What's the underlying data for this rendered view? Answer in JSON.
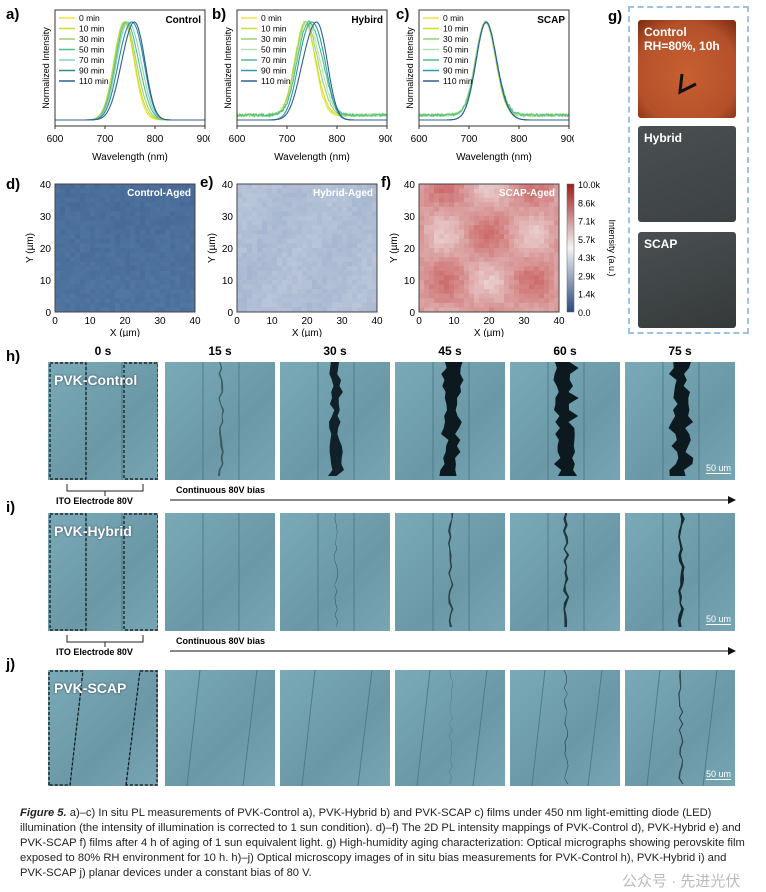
{
  "panels": {
    "a": "a)",
    "b": "b)",
    "c": "c)",
    "d": "d)",
    "e": "e)",
    "f": "f)",
    "g": "g)",
    "h": "h)",
    "i": "i)",
    "j": "j)"
  },
  "chart_data": [
    {
      "type": "line",
      "id": "a",
      "title": "Control",
      "xlabel": "Wavelength (nm)",
      "ylabel": "Normalized Intensity",
      "xlim": [
        600,
        900
      ],
      "xticks": [
        "600",
        "700",
        "800",
        "900"
      ],
      "series": [
        {
          "name": "0 min",
          "color": "#f2e23a",
          "peak_nm": 738,
          "red_shoulder": 0.0
        },
        {
          "name": "10 min",
          "color": "#c9de2e",
          "peak_nm": 738,
          "red_shoulder": 0.05
        },
        {
          "name": "30 min",
          "color": "#98d46e",
          "peak_nm": 739,
          "red_shoulder": 0.12
        },
        {
          "name": "50 min",
          "color": "#4fbf8a",
          "peak_nm": 740,
          "red_shoulder": 0.25
        },
        {
          "name": "70 min",
          "color": "#8dcfc4",
          "peak_nm": 741,
          "red_shoulder": 0.4
        },
        {
          "name": "90 min",
          "color": "#2a8a9c",
          "peak_nm": 742,
          "red_shoulder": 0.7
        },
        {
          "name": "110 min",
          "color": "#2f5f92",
          "peak_nm": 745,
          "red_shoulder": 0.95
        }
      ],
      "noise": 0
    },
    {
      "type": "line",
      "id": "b",
      "title": "Hybird",
      "xlabel": "Wavelength (nm)",
      "ylabel": "Normalized Intensity",
      "xlim": [
        600,
        900
      ],
      "xticks": [
        "600",
        "700",
        "800",
        "900"
      ],
      "series": [
        {
          "name": "0 min",
          "color": "#f2e23a",
          "peak_nm": 736,
          "red_shoulder": 0.0
        },
        {
          "name": "10 min",
          "color": "#c9de2e",
          "peak_nm": 736,
          "red_shoulder": 0.05
        },
        {
          "name": "30 min",
          "color": "#98d46e",
          "peak_nm": 737,
          "red_shoulder": 0.15
        },
        {
          "name": "50 min",
          "color": "#b7e2b0",
          "peak_nm": 738,
          "red_shoulder": 0.25
        },
        {
          "name": "70 min",
          "color": "#4fbf8a",
          "peak_nm": 739,
          "red_shoulder": 0.4
        },
        {
          "name": "90 min",
          "color": "#2a9cab",
          "peak_nm": 740,
          "red_shoulder": 0.6
        },
        {
          "name": "110 min",
          "color": "#2f5f92",
          "peak_nm": 742,
          "red_shoulder": 1.05
        }
      ],
      "noise": 0.05
    },
    {
      "type": "line",
      "id": "c",
      "title": "SCAP",
      "xlabel": "Wavelength (nm)",
      "ylabel": "Normalized Intensity",
      "xlim": [
        600,
        900
      ],
      "xticks": [
        "600",
        "700",
        "800",
        "900"
      ],
      "series": [
        {
          "name": "0 min",
          "color": "#f2e23a",
          "peak_nm": 733,
          "red_shoulder": 0.0
        },
        {
          "name": "10 min",
          "color": "#c9de2e",
          "peak_nm": 733,
          "red_shoulder": 0.0
        },
        {
          "name": "30 min",
          "color": "#98d46e",
          "peak_nm": 733,
          "red_shoulder": 0.02
        },
        {
          "name": "50 min",
          "color": "#b7e2b0",
          "peak_nm": 733,
          "red_shoulder": 0.03
        },
        {
          "name": "70 min",
          "color": "#4fbf8a",
          "peak_nm": 734,
          "red_shoulder": 0.04
        },
        {
          "name": "90 min",
          "color": "#2a9cab",
          "peak_nm": 734,
          "red_shoulder": 0.05
        },
        {
          "name": "110 min",
          "color": "#2f5f92",
          "peak_nm": 734,
          "red_shoulder": 0.06
        }
      ],
      "noise": 0.05
    },
    {
      "type": "heatmap",
      "id": "d",
      "title": "Control-Aged",
      "xlabel": "X (µm)",
      "ylabel": "Y (µm)",
      "xlim": [
        0,
        40
      ],
      "ylim": [
        0,
        40
      ],
      "ticks": [
        "0",
        "10",
        "20",
        "30",
        "40"
      ],
      "mean_intensity_k": 1.0
    },
    {
      "type": "heatmap",
      "id": "e",
      "title": "Hybrid-Aged",
      "xlabel": "X (µm)",
      "ylabel": "Y (µm)",
      "xlim": [
        0,
        40
      ],
      "ylim": [
        0,
        40
      ],
      "ticks": [
        "0",
        "10",
        "20",
        "30",
        "40"
      ],
      "mean_intensity_k": 3.2
    },
    {
      "type": "heatmap",
      "id": "f",
      "title": "SCAP-Aged",
      "xlabel": "X (µm)",
      "ylabel": "Y (µm)",
      "xlim": [
        0,
        40
      ],
      "ylim": [
        0,
        40
      ],
      "ticks": [
        "0",
        "10",
        "20",
        "30",
        "40"
      ],
      "mean_intensity_k": 6.8,
      "colorbar": {
        "label": "Intensity (a.u.)",
        "ticks": [
          "10.0k",
          "8.6k",
          "7.1k",
          "5.7k",
          "4.3k",
          "2.9k",
          "1.4k",
          "0.0"
        ],
        "range": [
          0,
          10000
        ]
      }
    }
  ],
  "humidity": {
    "photos": [
      {
        "label": "Control\nRH=80%, 10h",
        "color": "#b4502a"
      },
      {
        "label": "Hybrid",
        "color": "#3c4244"
      },
      {
        "label": "SCAP",
        "color": "#35393a"
      }
    ]
  },
  "bias": {
    "times": [
      "0 s",
      "15 s",
      "30 s",
      "45 s",
      "60 s",
      "75 s"
    ],
    "rows": [
      {
        "label": "PVK-Control",
        "crack": [
          0,
          0.1,
          0.55,
          0.9,
          0.95,
          1.0
        ]
      },
      {
        "label": "PVK-Hybrid",
        "crack": [
          0,
          0,
          0.1,
          0.3,
          0.4,
          0.5
        ]
      },
      {
        "label": "PVK-SCAP",
        "crack": [
          0,
          0,
          0,
          0.05,
          0.15,
          0.25
        ]
      }
    ],
    "electrode": "ITO Electrode 80V",
    "bias_label": "Continuous 80V bias",
    "scale": "50 um"
  },
  "caption": {
    "lead": "Figure 5.",
    "text": " a)–c) In situ PL measurements of PVK-Control a), PVK-Hybrid b) and PVK-SCAP c) films under 450 nm light-emitting diode (LED) illumination (the intensity of illumination is corrected to 1 sun condition). d)–f) The 2D PL intensity mappings of PVK-Control d), PVK-Hybrid e) and PVK-SCAP f) films after 4 h of aging of 1 sun equivalent light. g) High-humidity aging characterization: Optical micrographs showing perovskite film exposed to 80% RH environment for 10 h. h)–j) Optical microscopy images of in situ bias measurements for PVK-Control h), PVK-Hybrid i) and PVK-SCAP j) planar devices under a constant bias of 80 V."
  },
  "watermark": "公众号 · 先进光伏"
}
